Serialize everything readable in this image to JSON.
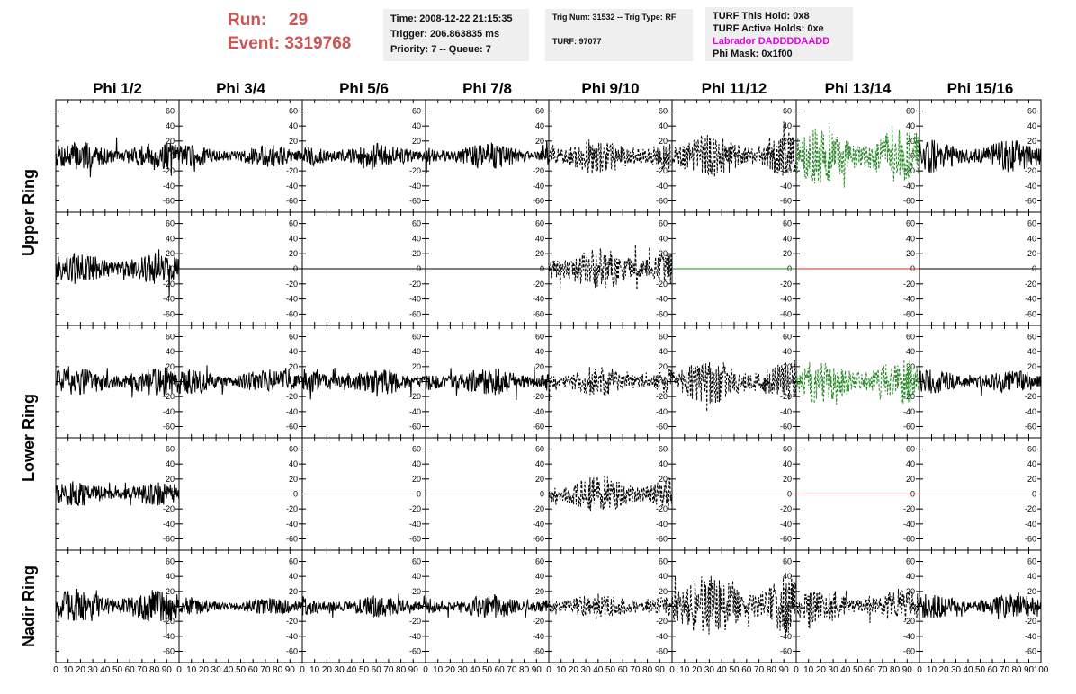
{
  "header": {
    "run_label": "Run:",
    "run_value": "29",
    "event_label": "Event:",
    "event_value": "3319768",
    "time": "Time: 2008-12-22 21:15:35",
    "trigger": "Trigger: 206.863835 ms",
    "priority": "Priority: 7 -- Queue: 7",
    "trig_num": "Trig Num: 31532 -- Trig Type: RF",
    "turf": "TURF: 97077",
    "turf_hold": "TURF This Hold: 0x8",
    "turf_active": "TURF Active Holds: 0xe",
    "labrador": "Labrador DADDDDAADD",
    "phi_mask": "Phi Mask: 0x1f00"
  },
  "colors": {
    "run_text": "#cc5555",
    "labrador_text": "#e600e6",
    "trace_black": "#000000",
    "trace_green": "#2a8a2a",
    "trace_red": "#cc3333",
    "info_box_bg": "#efefef"
  },
  "chart_data": {
    "type": "line",
    "columns": [
      "Phi 1/2",
      "Phi 3/4",
      "Phi 5/6",
      "Phi 7/8",
      "Phi 9/10",
      "Phi 11/12",
      "Phi 13/14",
      "Phi 15/16"
    ],
    "ring_labels": [
      "Upper Ring",
      "Lower Ring",
      "Nadir Ring"
    ],
    "rows": 5,
    "xlim": [
      0,
      100
    ],
    "ylim": [
      -75,
      75
    ],
    "y_ticks": [
      -60,
      -40,
      -20,
      0,
      20,
      40,
      60
    ],
    "x_ticks": [
      0,
      10,
      20,
      30,
      40,
      50,
      60,
      70,
      80,
      90,
      100
    ],
    "x_tick_labels_bottom": [
      "0",
      "10",
      "20",
      "30",
      "40",
      "50",
      "60",
      "70",
      "80",
      "90",
      "100"
    ],
    "panels": [
      {
        "row": 0,
        "col": 0,
        "amp": 20,
        "style": "solid",
        "color": "#000000"
      },
      {
        "row": 0,
        "col": 1,
        "amp": 15,
        "style": "solid",
        "color": "#000000"
      },
      {
        "row": 0,
        "col": 2,
        "amp": 17,
        "style": "solid",
        "color": "#000000"
      },
      {
        "row": 0,
        "col": 3,
        "amp": 18,
        "style": "solid",
        "color": "#000000"
      },
      {
        "row": 0,
        "col": 4,
        "amp": 25,
        "style": "dashed",
        "color": "#000000"
      },
      {
        "row": 0,
        "col": 5,
        "amp": 30,
        "style": "dashed",
        "color": "#000000"
      },
      {
        "row": 0,
        "col": 6,
        "amp": 38,
        "style": "dashed",
        "color": "#2a8a2a"
      },
      {
        "row": 0,
        "col": 7,
        "amp": 22,
        "style": "solid",
        "color": "#000000"
      },
      {
        "row": 1,
        "col": 0,
        "amp": 22,
        "style": "solid",
        "color": "#000000"
      },
      {
        "row": 1,
        "col": 1,
        "amp": 0,
        "style": "solid",
        "color": "#000000"
      },
      {
        "row": 1,
        "col": 2,
        "amp": 0,
        "style": "solid",
        "color": "#000000"
      },
      {
        "row": 1,
        "col": 3,
        "amp": 0,
        "style": "solid",
        "color": "#000000"
      },
      {
        "row": 1,
        "col": 4,
        "amp": 28,
        "style": "dashed",
        "color": "#000000"
      },
      {
        "row": 1,
        "col": 5,
        "amp": 0,
        "style": "solid",
        "color": "#2a8a2a"
      },
      {
        "row": 1,
        "col": 6,
        "amp": 0,
        "style": "solid",
        "color": "#cc3333"
      },
      {
        "row": 1,
        "col": 7,
        "amp": 0,
        "style": "solid",
        "color": "#000000"
      },
      {
        "row": 2,
        "col": 0,
        "amp": 20,
        "style": "solid",
        "color": "#000000"
      },
      {
        "row": 2,
        "col": 1,
        "amp": 17,
        "style": "solid",
        "color": "#000000"
      },
      {
        "row": 2,
        "col": 2,
        "amp": 18,
        "style": "solid",
        "color": "#000000"
      },
      {
        "row": 2,
        "col": 3,
        "amp": 19,
        "style": "solid",
        "color": "#000000"
      },
      {
        "row": 2,
        "col": 4,
        "amp": 20,
        "style": "dashed",
        "color": "#000000"
      },
      {
        "row": 2,
        "col": 5,
        "amp": 30,
        "style": "dashed",
        "color": "#000000"
      },
      {
        "row": 2,
        "col": 6,
        "amp": 30,
        "style": "dashed",
        "color": "#2a8a2a"
      },
      {
        "row": 2,
        "col": 7,
        "amp": 16,
        "style": "solid",
        "color": "#000000"
      },
      {
        "row": 3,
        "col": 0,
        "amp": 16,
        "style": "solid",
        "color": "#000000"
      },
      {
        "row": 3,
        "col": 1,
        "amp": 0,
        "style": "solid",
        "color": "#000000"
      },
      {
        "row": 3,
        "col": 2,
        "amp": 0,
        "style": "solid",
        "color": "#000000"
      },
      {
        "row": 3,
        "col": 3,
        "amp": 0,
        "style": "solid",
        "color": "#000000"
      },
      {
        "row": 3,
        "col": 4,
        "amp": 25,
        "style": "dashed",
        "color": "#000000"
      },
      {
        "row": 3,
        "col": 5,
        "amp": 0,
        "style": "solid",
        "color": "#000000"
      },
      {
        "row": 3,
        "col": 6,
        "amp": 0,
        "style": "solid",
        "color": "#cc3333"
      },
      {
        "row": 3,
        "col": 7,
        "amp": 0,
        "style": "solid",
        "color": "#000000"
      },
      {
        "row": 4,
        "col": 0,
        "amp": 24,
        "style": "solid",
        "color": "#000000"
      },
      {
        "row": 4,
        "col": 1,
        "amp": 12,
        "style": "solid",
        "color": "#000000"
      },
      {
        "row": 4,
        "col": 2,
        "amp": 15,
        "style": "solid",
        "color": "#000000"
      },
      {
        "row": 4,
        "col": 3,
        "amp": 17,
        "style": "solid",
        "color": "#000000"
      },
      {
        "row": 4,
        "col": 4,
        "amp": 18,
        "style": "dashed",
        "color": "#000000"
      },
      {
        "row": 4,
        "col": 5,
        "amp": 42,
        "style": "dashed",
        "color": "#000000"
      },
      {
        "row": 4,
        "col": 6,
        "amp": 22,
        "style": "dashed",
        "color": "#000000"
      },
      {
        "row": 4,
        "col": 7,
        "amp": 17,
        "style": "solid",
        "color": "#000000"
      }
    ]
  }
}
